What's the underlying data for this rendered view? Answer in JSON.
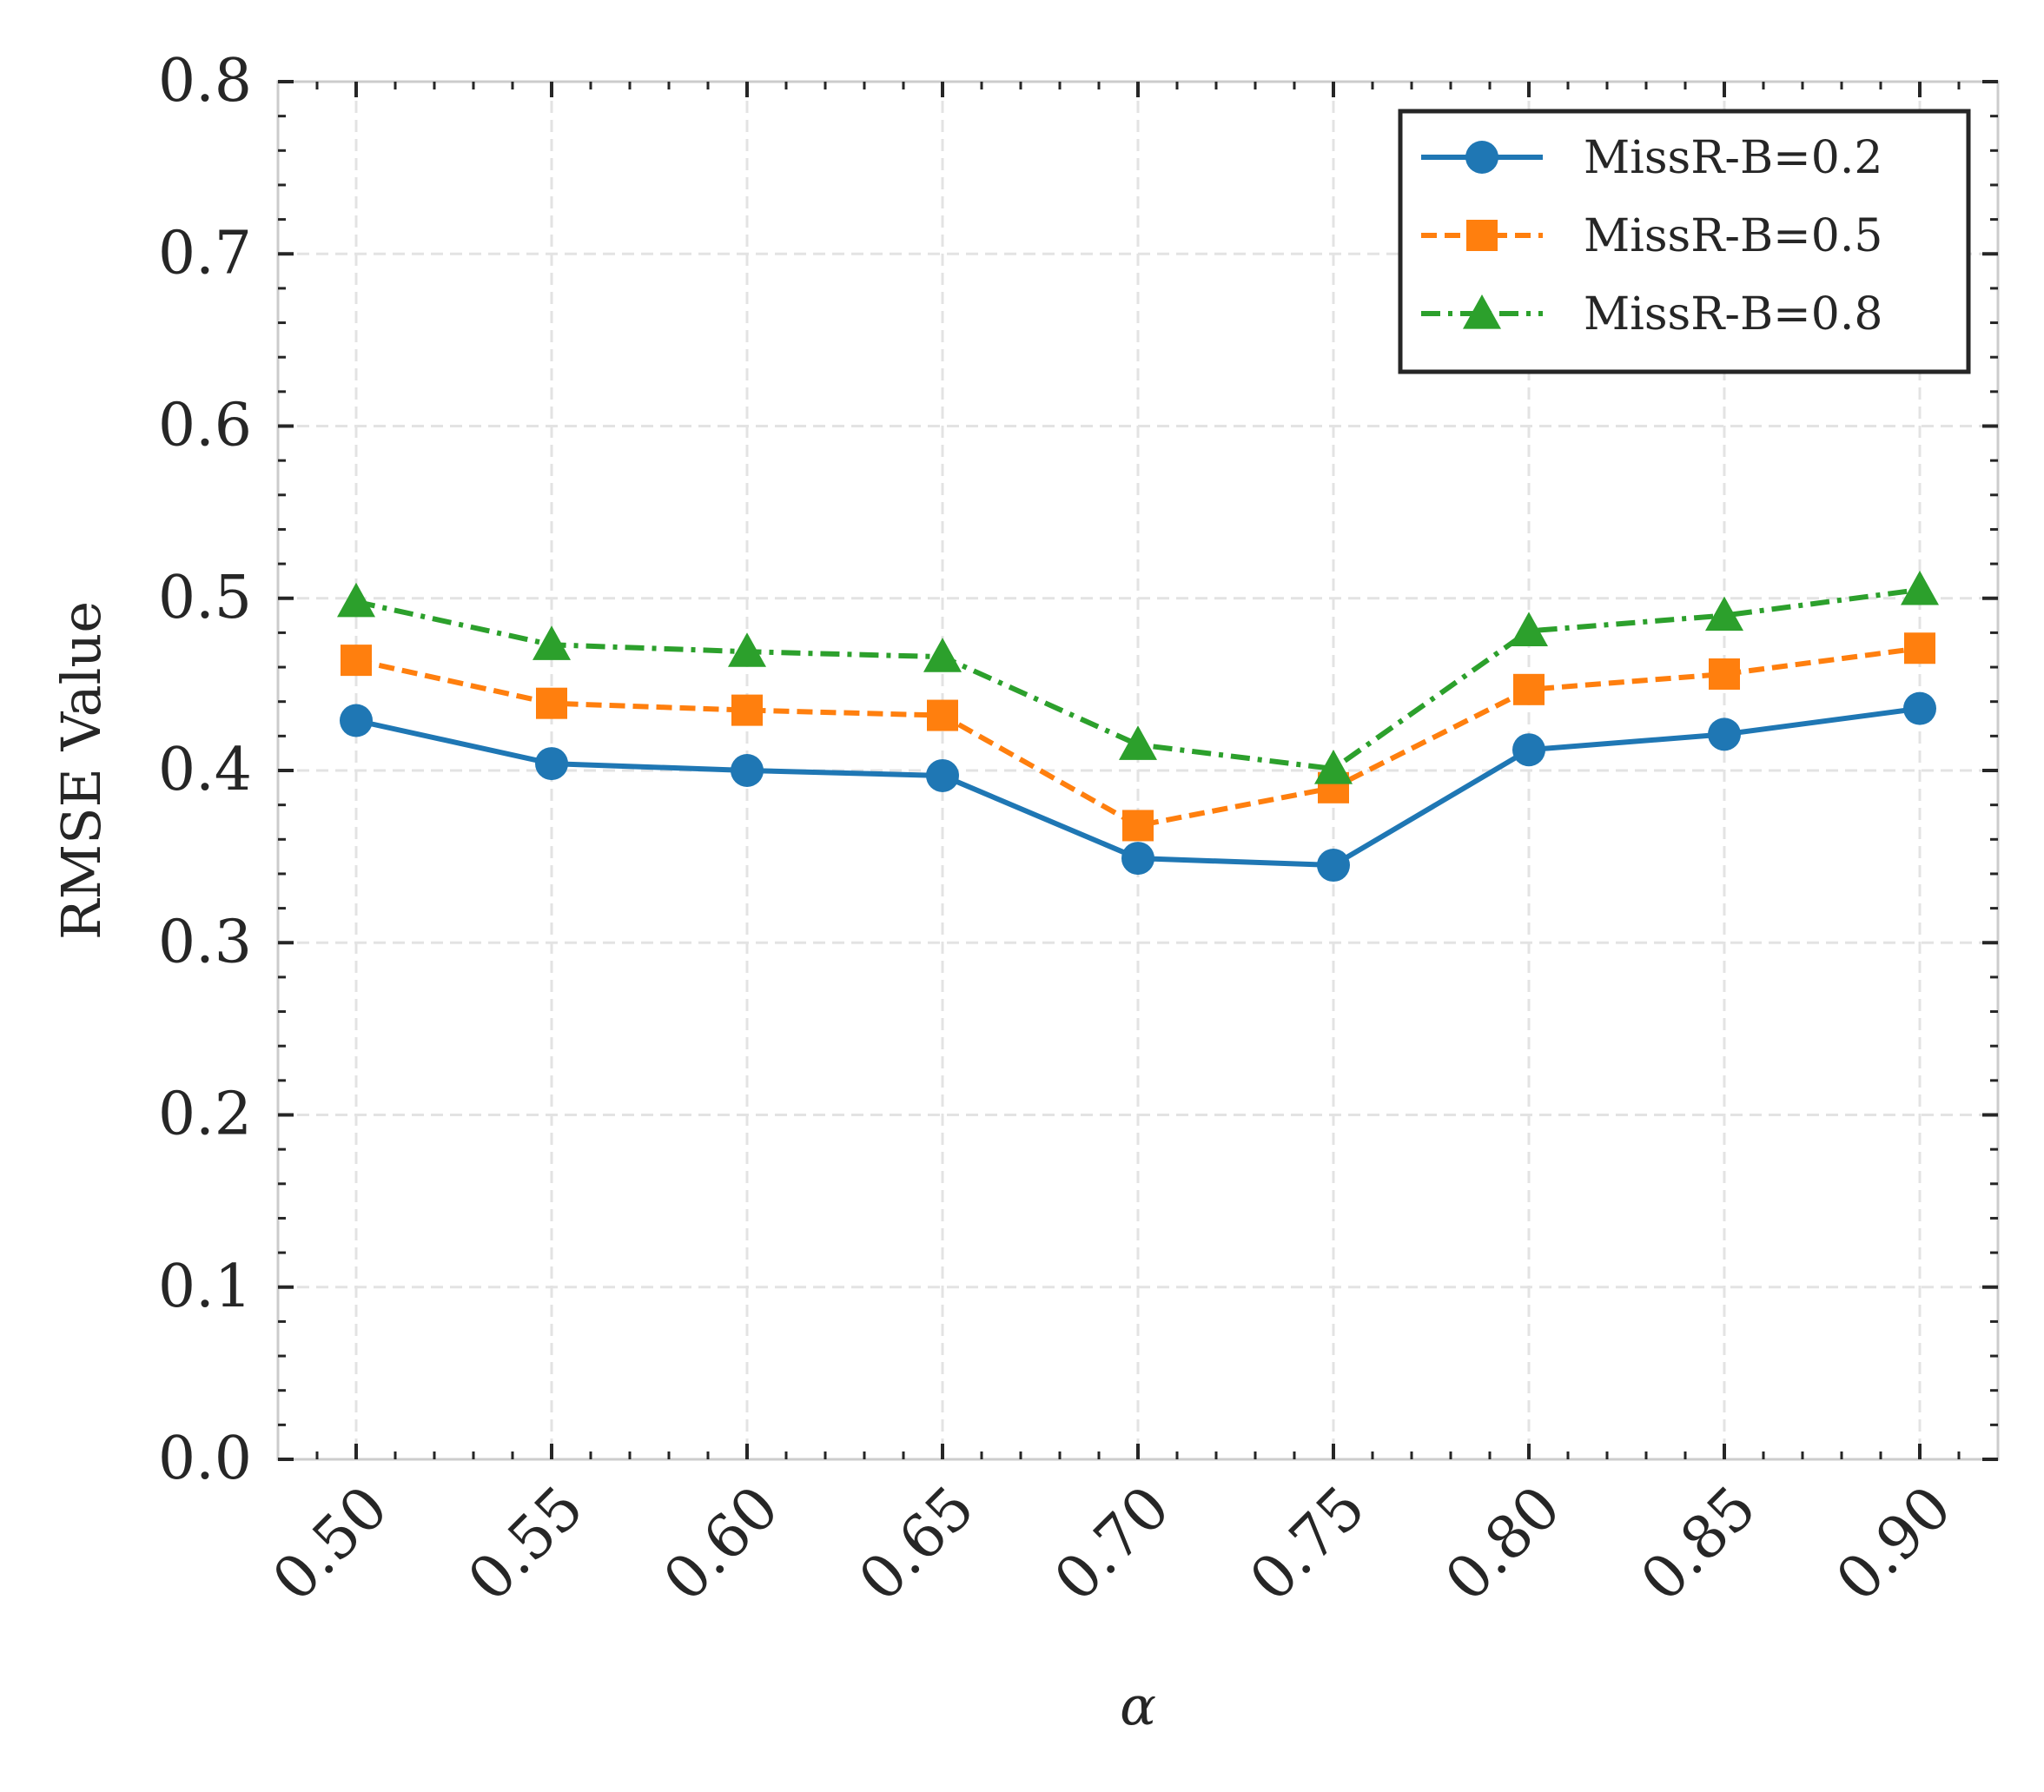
{
  "chart_data": {
    "type": "line",
    "title": "",
    "xlabel": "α",
    "ylabel": "RMSE Value",
    "x": [
      0.5,
      0.55,
      0.6,
      0.65,
      0.7,
      0.75,
      0.8,
      0.85,
      0.9
    ],
    "x_tick_labels": [
      "0.50",
      "0.55",
      "0.60",
      "0.65",
      "0.70",
      "0.75",
      "0.80",
      "0.85",
      "0.90"
    ],
    "xlim": [
      0.48,
      0.92
    ],
    "ylim": [
      0.0,
      0.8
    ],
    "y_ticks": [
      0.0,
      0.1,
      0.2,
      0.3,
      0.4,
      0.5,
      0.6,
      0.7,
      0.8
    ],
    "y_tick_labels": [
      "0.0",
      "0.1",
      "0.2",
      "0.3",
      "0.4",
      "0.5",
      "0.6",
      "0.7",
      "0.8"
    ],
    "grid": true,
    "legend_position": "top-right",
    "series": [
      {
        "name": "MissR-B=0.2",
        "values": [
          0.429,
          0.404,
          0.4,
          0.397,
          0.349,
          0.345,
          0.412,
          0.421,
          0.436
        ],
        "color": "#1f77b4",
        "line_style": "solid",
        "marker": "circle"
      },
      {
        "name": "MissR-B=0.5",
        "values": [
          0.464,
          0.439,
          0.435,
          0.432,
          0.368,
          0.39,
          0.447,
          0.456,
          0.471
        ],
        "color": "#ff7f0e",
        "line_style": "dashed",
        "marker": "square"
      },
      {
        "name": "MissR-B=0.8",
        "values": [
          0.498,
          0.473,
          0.469,
          0.466,
          0.415,
          0.401,
          0.481,
          0.49,
          0.505
        ],
        "color": "#2ca02c",
        "line_style": "dashdot",
        "marker": "triangle"
      }
    ]
  }
}
